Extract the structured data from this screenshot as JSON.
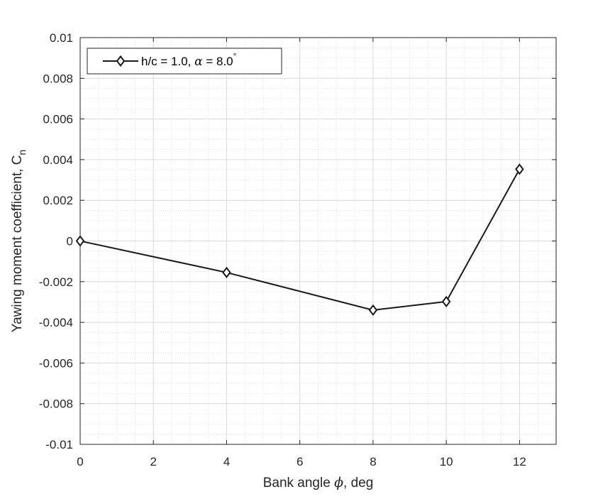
{
  "chart_data": {
    "type": "line",
    "x": [
      0,
      4,
      8,
      10,
      12
    ],
    "series": [
      {
        "name": "h/c = 1.0, α = 8.0°",
        "values": [
          0.0,
          -0.00155,
          -0.0034,
          -0.00298,
          0.00353
        ],
        "color": "#1a1a1a",
        "marker": "diamond"
      }
    ],
    "xlabel": "Bank angle ϕ, deg",
    "ylabel": "Yawing moment coefficient, C",
    "ylabel_subscript": "n",
    "xlim": [
      0,
      13
    ],
    "ylim": [
      -0.01,
      0.01
    ],
    "xticks": [
      0,
      2,
      4,
      6,
      8,
      10,
      12
    ],
    "xtick_labels": [
      "0",
      "2",
      "4",
      "6",
      "8",
      "10",
      "12"
    ],
    "yticks": [
      -0.01,
      -0.008,
      -0.006,
      -0.004,
      -0.002,
      0,
      0.002,
      0.004,
      0.006,
      0.008,
      0.01
    ],
    "ytick_labels": [
      "-0.01",
      "-0.008",
      "-0.006",
      "-0.004",
      "-0.002",
      "0",
      "0.002",
      "0.004",
      "0.006",
      "0.008",
      "0.01"
    ],
    "grid": "major and minor",
    "legend": {
      "position": "top-left",
      "label_prefix": "h/c = 1.0, ",
      "label_greek": "α",
      "label_suffix": " = 8.0",
      "label_sup": "°"
    }
  }
}
